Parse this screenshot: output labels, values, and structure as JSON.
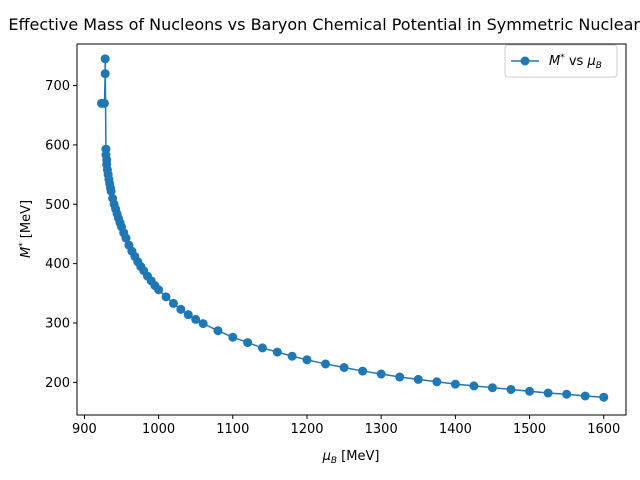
{
  "chart_data": {
    "type": "line",
    "title": "Effective Mass of Nucleons vs Baryon Chemical Potential in Symmetric Nuclear Matter",
    "xlabel_base": "μ",
    "xlabel_sub": "B",
    "xlabel_unit": " [MeV]",
    "ylabel_base": "M",
    "ylabel_sup": "*",
    "ylabel_unit": " [MeV]",
    "legend": {
      "placement": "top-right",
      "entry": {
        "m": "M",
        "sup": "*",
        "vs": " vs ",
        "mu": "μ",
        "sub": "B"
      }
    },
    "color": "#1f77b4",
    "xlim": [
      890,
      1630
    ],
    "ylim": [
      145,
      770
    ],
    "xticks": [
      900,
      1000,
      1100,
      1200,
      1300,
      1400,
      1500,
      1600
    ],
    "xtick_labels": [
      "900",
      "1000",
      "1100",
      "1200",
      "1300",
      "1400",
      "1500",
      "1600"
    ],
    "yticks": [
      200,
      300,
      400,
      500,
      600,
      700
    ],
    "ytick_labels": [
      "200",
      "300",
      "400",
      "500",
      "600",
      "700"
    ],
    "series": [
      {
        "x": [
          923,
          927,
          928,
          928,
          929,
          929,
          930,
          930,
          931,
          932,
          933,
          934,
          935,
          936,
          938,
          940,
          942,
          944,
          946,
          948,
          950,
          953,
          956,
          960,
          964,
          968,
          972,
          976,
          980,
          985,
          990,
          995,
          1000,
          1010,
          1020,
          1030,
          1040,
          1050,
          1060,
          1080,
          1100,
          1120,
          1140,
          1160,
          1180,
          1200,
          1225,
          1250,
          1275,
          1300,
          1325,
          1350,
          1375,
          1400,
          1425,
          1450,
          1475,
          1500,
          1525,
          1550,
          1575,
          1600
        ],
        "y": [
          670,
          670,
          720,
          745,
          593,
          583,
          575,
          567,
          558,
          550,
          542,
          535,
          528,
          522,
          510,
          500,
          492,
          484,
          476,
          469,
          462,
          452,
          443,
          431,
          421,
          412,
          403,
          395,
          388,
          379,
          371,
          363,
          356,
          344,
          333,
          323,
          314,
          306,
          299,
          287,
          276,
          267,
          258,
          251,
          244,
          238,
          231,
          225,
          219,
          214,
          209,
          205,
          201,
          197,
          194,
          191,
          188,
          185,
          182,
          180,
          177,
          175
        ]
      }
    ]
  }
}
